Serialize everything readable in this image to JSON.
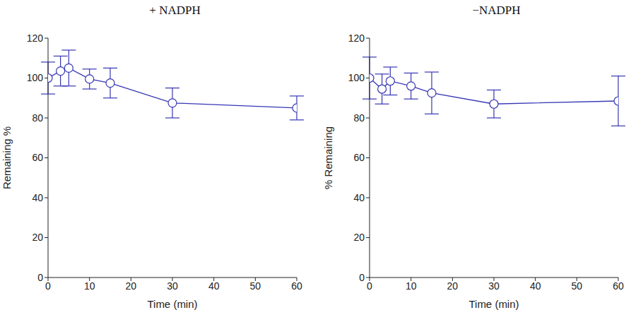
{
  "chart_data": [
    {
      "type": "line",
      "title": "+ NADPH",
      "xlabel": "Time (min)",
      "ylabel": "Remaining %",
      "x": [
        0,
        3,
        5,
        10,
        15,
        30,
        60
      ],
      "values": [
        100,
        103.5,
        105,
        99.5,
        97.5,
        87.5,
        85
      ],
      "errors": [
        8,
        7.5,
        9,
        5,
        7.5,
        7.5,
        6
      ],
      "color": "#3636b4",
      "marker": "circle",
      "xlim": [
        0,
        60
      ],
      "xticks": [
        0,
        10,
        20,
        30,
        40,
        50,
        60
      ],
      "ylim": [
        0,
        120
      ],
      "yticks": [
        0,
        20,
        40,
        60,
        80,
        100,
        120
      ]
    },
    {
      "type": "line",
      "title": "−NADPH",
      "xlabel": "Time (min)",
      "ylabel": "% Remaining",
      "x": [
        0,
        3,
        5,
        10,
        15,
        30,
        60
      ],
      "values": [
        100,
        94.5,
        98.5,
        96,
        92.5,
        87,
        88.5
      ],
      "errors": [
        10.5,
        7.5,
        7,
        6.5,
        10.5,
        7,
        12.5
      ],
      "color": "#3636b4",
      "marker": "circle",
      "xlim": [
        0,
        60
      ],
      "xticks": [
        0,
        10,
        20,
        30,
        40,
        50,
        60
      ],
      "ylim": [
        0,
        120
      ],
      "yticks": [
        0,
        20,
        40,
        60,
        80,
        100,
        120
      ]
    }
  ]
}
